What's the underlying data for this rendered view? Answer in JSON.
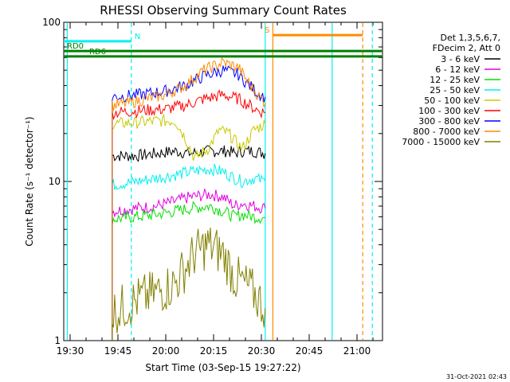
{
  "chart_data": {
    "type": "line",
    "title": "RHESSI Observing Summary Count Rates",
    "xlabel": "Start Time (03-Sep-15 19:27:22)",
    "ylabel": "Count Rate (s⁻¹ detector⁻¹)",
    "ylog": true,
    "ylim": [
      1,
      100
    ],
    "xlim_minutes": [
      19.4667,
      21.1333
    ],
    "x_ticks": [
      "19:30",
      "19:45",
      "20:00",
      "20:15",
      "20:30",
      "20:45",
      "21:00"
    ],
    "y_ticks": [
      "1",
      "10",
      "100"
    ],
    "footer_date": "31-Oct-2021 02:43",
    "legend_header": [
      "Det 1,3,5,6,7,",
      "FDecim 2, Att 0"
    ],
    "series": [
      {
        "name": "3 - 6 keV",
        "color": "#000000",
        "x": [
          19.72,
          19.85,
          19.95,
          20.05,
          20.13,
          20.23,
          20.3,
          20.33,
          20.36,
          20.4,
          20.46,
          20.52
        ],
        "y": [
          14.5,
          14.5,
          15.0,
          15.5,
          15.0,
          15.5,
          15.5,
          15.5,
          15.0,
          15.5,
          15.5,
          15.0
        ]
      },
      {
        "name": "6 - 12 keV",
        "color": "#e000e0",
        "x": [
          19.72,
          19.85,
          19.95,
          20.05,
          20.13,
          20.23,
          20.3,
          20.36,
          20.4,
          20.46,
          20.52
        ],
        "y": [
          6.5,
          6.8,
          7.0,
          7.5,
          8.0,
          8.3,
          8.0,
          7.0,
          7.3,
          7.0,
          6.8
        ]
      },
      {
        "name": "12 - 25 keV",
        "color": "#00e000",
        "x": [
          19.72,
          19.85,
          19.95,
          20.05,
          20.13,
          20.23,
          20.3,
          20.36,
          20.4,
          20.46,
          20.52
        ],
        "y": [
          5.8,
          6.0,
          6.2,
          6.5,
          6.8,
          7.0,
          6.5,
          6.0,
          6.2,
          6.0,
          5.9
        ]
      },
      {
        "name": "25 - 50 keV",
        "color": "#00f0f0",
        "x": [
          19.72,
          19.85,
          19.95,
          20.05,
          20.13,
          20.23,
          20.3,
          20.36,
          20.4,
          20.46,
          20.52
        ],
        "y": [
          9.5,
          10.0,
          10.5,
          11.0,
          11.5,
          12.0,
          11.5,
          10.5,
          10.0,
          10.5,
          10.0
        ]
      },
      {
        "name": "50 - 100 keV",
        "color": "#c8c800",
        "x": [
          19.72,
          19.85,
          19.95,
          20.05,
          20.1,
          20.15,
          20.22,
          20.28,
          20.33,
          20.36,
          20.4,
          20.46,
          20.52
        ],
        "y": [
          23.0,
          23.5,
          24.0,
          24.0,
          19.0,
          14.0,
          16.0,
          21.0,
          20.0,
          18.0,
          16.0,
          21.0,
          23.0
        ]
      },
      {
        "name": "100 - 300 keV",
        "color": "#ff0000",
        "x": [
          19.72,
          19.8,
          19.9,
          20.0,
          20.1,
          20.2,
          20.3,
          20.38,
          20.42,
          20.48,
          20.52
        ],
        "y": [
          27.0,
          27.5,
          28.0,
          28.5,
          30.0,
          33.0,
          35.0,
          33.0,
          31.0,
          28.0,
          27.0
        ]
      },
      {
        "name": "300 - 800 keV",
        "color": "#0000ff",
        "x": [
          19.72,
          19.8,
          19.9,
          20.0,
          20.1,
          20.2,
          20.3,
          20.38,
          20.42,
          20.48,
          20.52
        ],
        "y": [
          34.0,
          34.5,
          35.5,
          37.0,
          40.0,
          46.0,
          50.0,
          47.0,
          42.0,
          36.0,
          34.0
        ]
      },
      {
        "name": "800 - 7000 keV",
        "color": "#ff8c00",
        "x": [
          19.72,
          19.8,
          19.9,
          20.0,
          20.1,
          20.2,
          20.3,
          20.38,
          20.42,
          20.48,
          20.52
        ],
        "y": [
          30.0,
          31.0,
          33.0,
          35.0,
          40.0,
          50.0,
          56.0,
          52.0,
          44.0,
          35.0,
          31.0
        ]
      },
      {
        "name": "7000 - 15000 keV",
        "color": "#808000",
        "x": [
          19.72,
          19.85,
          19.95,
          20.05,
          20.15,
          20.22,
          20.3,
          20.36,
          20.4,
          20.46,
          20.52
        ],
        "y": [
          1.5,
          1.8,
          2.0,
          2.3,
          3.5,
          4.0,
          3.5,
          2.5,
          2.3,
          2.0,
          1.6
        ]
      }
    ],
    "flags": [
      {
        "name": "N",
        "color": "#00f0f0",
        "y": 76,
        "x_start": 19.4667,
        "x_end": 19.82,
        "label": "N"
      },
      {
        "name": "S",
        "color": "#ff8c00",
        "y": 83,
        "x_start": 20.56,
        "x_end": 21.03,
        "label": "S"
      },
      {
        "name": "RD0",
        "color": "#008000",
        "y": 66,
        "x_start": 19.4667,
        "x_end": 21.13,
        "label": "RD0"
      },
      {
        "name": "RD6",
        "color": "#008000",
        "y": 61,
        "x_start": 19.4667,
        "x_end": 21.13,
        "label": "RD6"
      }
    ],
    "vertical_markers": [
      {
        "color": "#00f0f0",
        "x": 19.485,
        "style": "solid"
      },
      {
        "color": "#00f0f0",
        "x": 19.82,
        "style": "dashed"
      },
      {
        "color": "#00f0f0",
        "x": 20.52,
        "style": "solid"
      },
      {
        "color": "#00f0f0",
        "x": 20.87,
        "style": "solid"
      },
      {
        "color": "#00f0f0",
        "x": 21.08,
        "style": "dashed"
      },
      {
        "color": "#ff8c00",
        "x": 20.56,
        "style": "solid"
      },
      {
        "color": "#ff8c00",
        "x": 21.03,
        "style": "dashed"
      }
    ],
    "grid": false
  }
}
